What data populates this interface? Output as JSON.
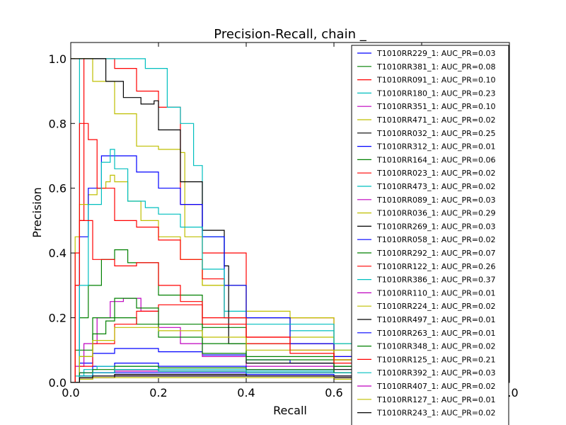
{
  "chart_data": {
    "type": "line",
    "title": "Precision-Recall, chain _",
    "xlabel": "Recall",
    "ylabel": "Precision",
    "xlim": [
      0.0,
      1.0
    ],
    "ylim": [
      0.0,
      1.05
    ],
    "x_ticks": [
      0.0,
      0.2,
      0.4,
      0.6,
      0.8,
      1.0
    ],
    "x_tick_labels": [
      "0.0",
      "0.2",
      "0.4",
      "0.6",
      "0.8",
      "1.0"
    ],
    "y_ticks": [
      0.0,
      0.2,
      0.4,
      0.6,
      0.8,
      1.0
    ],
    "y_tick_labels": [
      "0.0",
      "0.2",
      "0.4",
      "0.6",
      "0.8",
      "1.0"
    ],
    "grid": false,
    "legend_position": "top-right",
    "series": [
      {
        "name": "T1010RR229_1: AUC_PR=0.03",
        "color": "#0000ff",
        "x": [
          0,
          0.02,
          0.05,
          0.1,
          0.2,
          0.3,
          0.4,
          0.5,
          0.6,
          0.8,
          1.0
        ],
        "y": [
          0,
          0.06,
          0.09,
          0.105,
          0.095,
          0.085,
          0.07,
          0.06,
          0.05,
          0.04,
          0.03
        ]
      },
      {
        "name": "T1010RR381_1: AUC_PR=0.08",
        "color": "#008000",
        "x": [
          0,
          0.01,
          0.02,
          0.04,
          0.07,
          0.1,
          0.13,
          0.2,
          0.3,
          0.4,
          0.6,
          0.8,
          1.0
        ],
        "y": [
          0,
          0.1,
          0.2,
          0.3,
          0.38,
          0.41,
          0.37,
          0.27,
          0.17,
          0.12,
          0.07,
          0.05,
          0.04
        ]
      },
      {
        "name": "T1010RR091_1: AUC_PR=0.10",
        "color": "#ff0000",
        "x": [
          0,
          0.01,
          0.02,
          0.03,
          0.05,
          0.08,
          0.1,
          0.15,
          0.2,
          0.25,
          0.3,
          0.4,
          0.6,
          0.8,
          1.0
        ],
        "y": [
          0,
          0.3,
          0.5,
          1.0,
          1.0,
          1.0,
          0.97,
          0.9,
          0.85,
          0.55,
          0.4,
          0.2,
          0.08,
          0.05,
          0.04
        ]
      },
      {
        "name": "T1010RR180_1: AUC_PR=0.23",
        "color": "#00bfbf",
        "x": [
          0,
          0.02,
          0.05,
          0.1,
          0.15,
          0.17,
          0.2,
          0.22,
          0.25,
          0.28,
          0.3,
          0.35,
          0.4,
          0.5,
          0.6,
          0.7,
          1.0
        ],
        "y": [
          0,
          1.0,
          1.0,
          1.0,
          1.0,
          0.97,
          0.97,
          0.85,
          0.8,
          0.67,
          0.45,
          0.22,
          0.2,
          0.16,
          0.1,
          0.06,
          0.05
        ]
      },
      {
        "name": "T1010RR351_1: AUC_PR=0.10",
        "color": "#bf00bf",
        "x": [
          0,
          0.01,
          0.03,
          0.06,
          0.09,
          0.12,
          0.16,
          0.2,
          0.25,
          0.3,
          0.4,
          0.6,
          0.8,
          1.0
        ],
        "y": [
          0,
          0.05,
          0.12,
          0.2,
          0.25,
          0.26,
          0.22,
          0.17,
          0.12,
          0.08,
          0.05,
          0.03,
          0.02,
          0.02
        ]
      },
      {
        "name": "T1010RR471_1: AUC_PR=0.02",
        "color": "#bfbf00",
        "x": [
          0,
          0.05,
          0.1,
          0.15,
          0.2,
          0.25,
          0.26,
          0.3,
          0.4,
          0.6,
          0.8,
          1.0
        ],
        "y": [
          1.0,
          0.93,
          0.83,
          0.73,
          0.72,
          0.71,
          0.45,
          0.3,
          0.2,
          0.12,
          0.08,
          0.06
        ]
      },
      {
        "name": "T1010RR032_1: AUC_PR=0.25",
        "color": "#000000",
        "x": [
          0,
          0.07,
          0.08,
          0.12,
          0.16,
          0.19,
          0.2,
          0.25,
          0.3,
          0.35,
          0.36,
          0.4,
          0.6,
          0.8,
          1.0
        ],
        "y": [
          1.0,
          1.0,
          0.93,
          0.88,
          0.86,
          0.87,
          0.78,
          0.62,
          0.47,
          0.36,
          0.12,
          0.06,
          0.04,
          0.03,
          0.02
        ]
      },
      {
        "name": "T1010RR312_1: AUC_PR=0.01",
        "color": "#0000ff",
        "x": [
          0,
          0.02,
          0.05,
          0.1,
          0.2,
          0.4,
          0.6,
          0.8,
          1.0
        ],
        "y": [
          0,
          0.03,
          0.05,
          0.06,
          0.05,
          0.04,
          0.03,
          0.03,
          0.02
        ]
      },
      {
        "name": "T1010RR164_1: AUC_PR=0.06",
        "color": "#008000",
        "x": [
          0,
          0.02,
          0.05,
          0.08,
          0.1,
          0.15,
          0.2,
          0.3,
          0.4,
          0.6,
          0.8,
          1.0
        ],
        "y": [
          0,
          0.08,
          0.15,
          0.19,
          0.2,
          0.18,
          0.14,
          0.09,
          0.07,
          0.05,
          0.04,
          0.03
        ]
      },
      {
        "name": "T1010RR023_1: AUC_PR=0.02",
        "color": "#ff0000",
        "x": [
          0,
          0.02,
          0.05,
          0.1,
          0.15,
          0.2,
          0.3,
          0.4,
          0.6,
          0.8,
          1.0
        ],
        "y": [
          0,
          0.05,
          0.12,
          0.18,
          0.22,
          0.24,
          0.18,
          0.12,
          0.07,
          0.05,
          0.04
        ]
      },
      {
        "name": "T1010RR473_1: AUC_PR=0.02",
        "color": "#00bfbf",
        "x": [
          0,
          0.01,
          0.03,
          0.06,
          0.1,
          0.2,
          0.4,
          0.6,
          0.8,
          1.0
        ],
        "y": [
          0,
          0.02,
          0.04,
          0.05,
          0.05,
          0.04,
          0.035,
          0.03,
          0.03,
          0.02
        ]
      },
      {
        "name": "T1010RR089_1: AUC_PR=0.03",
        "color": "#bf00bf",
        "x": [
          0,
          0.02,
          0.05,
          0.1,
          0.2,
          0.4,
          0.6,
          0.8,
          1.0
        ],
        "y": [
          0,
          0.02,
          0.03,
          0.035,
          0.035,
          0.03,
          0.03,
          0.02,
          0.02
        ]
      },
      {
        "name": "T1010RR036_1: AUC_PR=0.29",
        "color": "#bfbf00",
        "x": [
          0,
          0.01,
          0.02,
          0.04,
          0.06,
          0.08,
          0.09,
          0.1,
          0.13,
          0.16,
          0.2,
          0.25,
          0.3,
          0.4,
          0.5,
          0.6,
          0.8,
          1.0
        ],
        "y": [
          0,
          0.45,
          0.55,
          0.58,
          0.6,
          0.62,
          0.64,
          0.62,
          0.56,
          0.5,
          0.45,
          0.38,
          0.3,
          0.22,
          0.14,
          0.1,
          0.06,
          0.05
        ]
      },
      {
        "name": "T1010RR269_1: AUC_PR=0.03",
        "color": "#000000",
        "x": [
          0,
          0.02,
          0.05,
          0.1,
          0.2,
          0.4,
          0.6,
          0.8,
          1.0
        ],
        "y": [
          0,
          0.02,
          0.03,
          0.04,
          0.035,
          0.03,
          0.03,
          0.025,
          0.02
        ]
      },
      {
        "name": "T1010RR058_1: AUC_PR=0.02",
        "color": "#0000ff",
        "x": [
          0,
          0.02,
          0.04,
          0.07,
          0.1,
          0.15,
          0.2,
          0.25,
          0.3,
          0.35,
          0.4,
          0.5,
          0.6,
          0.8,
          1.0
        ],
        "y": [
          0,
          0.45,
          0.6,
          0.7,
          0.7,
          0.65,
          0.6,
          0.55,
          0.45,
          0.3,
          0.2,
          0.12,
          0.08,
          0.05,
          0.04
        ]
      },
      {
        "name": "T1010RR292_1: AUC_PR=0.07",
        "color": "#008000",
        "x": [
          0,
          0.02,
          0.05,
          0.1,
          0.15,
          0.2,
          0.3,
          0.4,
          0.6,
          0.8,
          1.0
        ],
        "y": [
          0,
          0.1,
          0.2,
          0.26,
          0.23,
          0.18,
          0.12,
          0.08,
          0.05,
          0.04,
          0.03
        ]
      },
      {
        "name": "T1010RR122_1: AUC_PR=0.26",
        "color": "#ff0000",
        "x": [
          0,
          0.01,
          0.02,
          0.04,
          0.06,
          0.1,
          0.15,
          0.2,
          0.25,
          0.3,
          0.35,
          0.4,
          0.5,
          0.6,
          0.8,
          1.0
        ],
        "y": [
          0,
          0.3,
          0.8,
          0.75,
          0.6,
          0.5,
          0.48,
          0.44,
          0.38,
          0.32,
          0.2,
          0.14,
          0.1,
          0.07,
          0.05,
          0.04
        ]
      },
      {
        "name": "T1010RR386_1: AUC_PR=0.37",
        "color": "#00bfbf",
        "x": [
          0,
          0.02,
          0.04,
          0.07,
          0.09,
          0.1,
          0.13,
          0.17,
          0.2,
          0.25,
          0.3,
          0.35,
          0.4,
          0.6,
          0.8,
          1.0
        ],
        "y": [
          0,
          0.3,
          0.55,
          0.68,
          0.72,
          0.66,
          0.56,
          0.54,
          0.52,
          0.48,
          0.35,
          0.2,
          0.18,
          0.12,
          0.07,
          0.05
        ]
      },
      {
        "name": "T1010RR110_1: AUC_PR=0.01",
        "color": "#bf00bf",
        "x": [
          0,
          0.02,
          0.05,
          0.1,
          0.2,
          0.4,
          0.6,
          0.8,
          1.0
        ],
        "y": [
          0,
          0.01,
          0.015,
          0.02,
          0.02,
          0.02,
          0.015,
          0.015,
          0.01
        ]
      },
      {
        "name": "T1010RR224_1: AUC_PR=0.02",
        "color": "#bfbf00",
        "x": [
          0,
          0.02,
          0.05,
          0.1,
          0.2,
          0.3,
          0.4,
          0.6,
          0.8,
          1.0
        ],
        "y": [
          0,
          0.08,
          0.13,
          0.17,
          0.16,
          0.14,
          0.1,
          0.07,
          0.05,
          0.04
        ]
      },
      {
        "name": "T1010RR497_1: AUC_PR=0.01",
        "color": "#000000",
        "x": [
          0,
          0.02,
          0.05,
          0.1,
          0.2,
          0.4,
          0.6,
          0.8,
          1.0
        ],
        "y": [
          0,
          0.01,
          0.015,
          0.02,
          0.02,
          0.02,
          0.015,
          0.015,
          0.01
        ]
      },
      {
        "name": "T1010RR263_1: AUC_PR=0.01",
        "color": "#0000ff",
        "x": [
          0,
          0.02,
          0.05,
          0.1,
          0.2,
          0.4,
          0.6,
          0.8,
          1.0
        ],
        "y": [
          0,
          0.02,
          0.03,
          0.03,
          0.03,
          0.025,
          0.02,
          0.02,
          0.015
        ]
      },
      {
        "name": "T1010RR348_1: AUC_PR=0.02",
        "color": "#008000",
        "x": [
          0,
          0.02,
          0.05,
          0.1,
          0.2,
          0.4,
          0.6,
          0.8,
          1.0
        ],
        "y": [
          0,
          0.03,
          0.04,
          0.05,
          0.045,
          0.04,
          0.03,
          0.03,
          0.025
        ]
      },
      {
        "name": "T1010RR125_1: AUC_PR=0.21",
        "color": "#ff0000",
        "x": [
          0,
          0.01,
          0.02,
          0.05,
          0.1,
          0.15,
          0.2,
          0.25,
          0.3,
          0.4,
          0.5,
          0.6,
          0.8,
          1.0
        ],
        "y": [
          0,
          0.4,
          0.5,
          0.38,
          0.36,
          0.37,
          0.3,
          0.25,
          0.2,
          0.14,
          0.09,
          0.06,
          0.05,
          0.04
        ]
      },
      {
        "name": "T1010RR392_1: AUC_PR=0.03",
        "color": "#00bfbf",
        "x": [
          0,
          0.02,
          0.05,
          0.1,
          0.2,
          0.4,
          0.6,
          0.8,
          1.0
        ],
        "y": [
          0,
          0.02,
          0.03,
          0.04,
          0.035,
          0.03,
          0.03,
          0.025,
          0.02
        ]
      },
      {
        "name": "T1010RR407_1: AUC_PR=0.02",
        "color": "#bf00bf",
        "x": [
          0,
          0.02,
          0.05,
          0.1,
          0.2,
          0.4,
          0.6,
          0.8,
          1.0
        ],
        "y": [
          0,
          0.015,
          0.02,
          0.025,
          0.025,
          0.02,
          0.02,
          0.015,
          0.015
        ]
      },
      {
        "name": "T1010RR127_1: AUC_PR=0.01",
        "color": "#bfbf00",
        "x": [
          0,
          0.02,
          0.05,
          0.1,
          0.2,
          0.4,
          0.6,
          0.8,
          1.0
        ],
        "y": [
          0,
          0.01,
          0.015,
          0.015,
          0.015,
          0.015,
          0.01,
          0.01,
          0.01
        ]
      },
      {
        "name": "T1010RR243_1: AUC_PR=0.02",
        "color": "#000000",
        "x": [
          0,
          0.02,
          0.05,
          0.1,
          0.2,
          0.4,
          0.6,
          0.8,
          1.0
        ],
        "y": [
          0,
          0.015,
          0.02,
          0.025,
          0.025,
          0.02,
          0.02,
          0.02,
          0.015
        ]
      }
    ]
  }
}
